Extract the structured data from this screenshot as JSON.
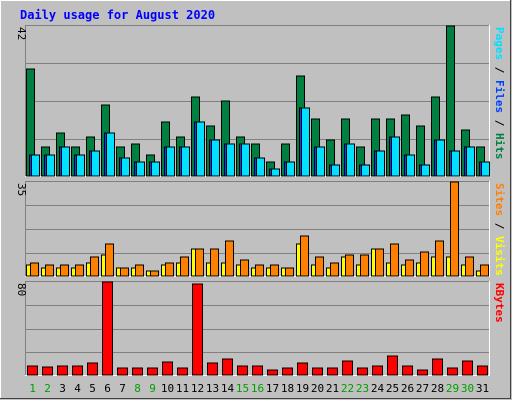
{
  "title": "Daily usage for August 2020",
  "colors": {
    "background": "#C0C0C0",
    "title": "#0000FF",
    "hits": "#008040",
    "files": "#0040FF",
    "pages": "#00E0FF",
    "visits": "#FFFF00",
    "sites": "#FF8000",
    "kbytes": "#FF0000",
    "weekend_day": "#00A000",
    "weekday": "#000000"
  },
  "chart_data": [
    {
      "type": "bar",
      "panel": "hits-files-pages",
      "categories": [
        "1",
        "2",
        "3",
        "4",
        "5",
        "6",
        "7",
        "8",
        "9",
        "10",
        "11",
        "12",
        "13",
        "14",
        "15",
        "16",
        "17",
        "18",
        "19",
        "20",
        "21",
        "22",
        "23",
        "24",
        "25",
        "26",
        "27",
        "28",
        "29",
        "30",
        "31"
      ],
      "weekend_days": [
        "1",
        "2",
        "8",
        "9",
        "15",
        "16",
        "22",
        "23",
        "29",
        "30"
      ],
      "ymax_label": "42",
      "ylim": [
        0,
        42
      ],
      "legend": [
        {
          "label": "Hits",
          "color": "#008040"
        },
        {
          "label": "Files",
          "color": "#0040FF"
        },
        {
          "label": "Pages",
          "color": "#00E0FF"
        }
      ],
      "series": [
        {
          "name": "Hits",
          "values": [
            30,
            8,
            12,
            8,
            11,
            20,
            8,
            9,
            6,
            15,
            11,
            22,
            14,
            21,
            11,
            9,
            4,
            9,
            28,
            16,
            10,
            16,
            8,
            16,
            16,
            17,
            14,
            22,
            42,
            13,
            8
          ]
        },
        {
          "name": "Files",
          "values": [
            6,
            6,
            8,
            6,
            7,
            12,
            5,
            4,
            4,
            8,
            8,
            15,
            10,
            9,
            9,
            5,
            2,
            4,
            19,
            8,
            3,
            9,
            3,
            7,
            11,
            6,
            3,
            10,
            7,
            8,
            4
          ]
        },
        {
          "name": "Pages",
          "values": [
            6,
            6,
            8,
            6,
            7,
            12,
            5,
            4,
            4,
            8,
            8,
            15,
            10,
            9,
            9,
            5,
            2,
            4,
            19,
            8,
            3,
            9,
            3,
            7,
            11,
            6,
            3,
            10,
            7,
            8,
            4
          ]
        }
      ]
    },
    {
      "type": "bar",
      "panel": "visits-sites",
      "categories": [
        "1",
        "2",
        "3",
        "4",
        "5",
        "6",
        "7",
        "8",
        "9",
        "10",
        "11",
        "12",
        "13",
        "14",
        "15",
        "16",
        "17",
        "18",
        "19",
        "20",
        "21",
        "22",
        "23",
        "24",
        "25",
        "26",
        "27",
        "28",
        "29",
        "30",
        "31"
      ],
      "ymax_label": "35",
      "ylim": [
        0,
        35
      ],
      "legend": [
        {
          "label": "Visits",
          "color": "#FFFF00"
        },
        {
          "label": "Sites",
          "color": "#FF8000"
        }
      ],
      "series": [
        {
          "name": "Visits",
          "values": [
            4,
            3,
            3,
            3,
            5,
            8,
            3,
            3,
            2,
            4,
            5,
            10,
            5,
            5,
            4,
            3,
            3,
            3,
            12,
            4,
            3,
            7,
            4,
            10,
            5,
            4,
            5,
            7,
            7,
            4,
            2
          ]
        },
        {
          "name": "Sites",
          "values": [
            5,
            4,
            4,
            4,
            7,
            12,
            3,
            4,
            2,
            5,
            7,
            10,
            10,
            13,
            6,
            4,
            4,
            3,
            15,
            7,
            5,
            8,
            8,
            10,
            12,
            6,
            9,
            13,
            35,
            7,
            4
          ]
        }
      ]
    },
    {
      "type": "bar",
      "panel": "kbytes",
      "categories": [
        "1",
        "2",
        "3",
        "4",
        "5",
        "6",
        "7",
        "8",
        "9",
        "10",
        "11",
        "12",
        "13",
        "14",
        "15",
        "16",
        "17",
        "18",
        "19",
        "20",
        "21",
        "22",
        "23",
        "24",
        "25",
        "26",
        "27",
        "28",
        "29",
        "30",
        "31"
      ],
      "ymax_label": "80",
      "ylim": [
        0,
        80
      ],
      "legend": [
        {
          "label": "KBytes",
          "color": "#FF0000"
        }
      ],
      "series": [
        {
          "name": "KBytes",
          "values": [
            8,
            7,
            8,
            8,
            10,
            80,
            6,
            6,
            6,
            11,
            6,
            78,
            10,
            14,
            8,
            8,
            4,
            6,
            10,
            6,
            6,
            12,
            6,
            8,
            16,
            8,
            4,
            14,
            6,
            12,
            8
          ]
        }
      ]
    }
  ]
}
